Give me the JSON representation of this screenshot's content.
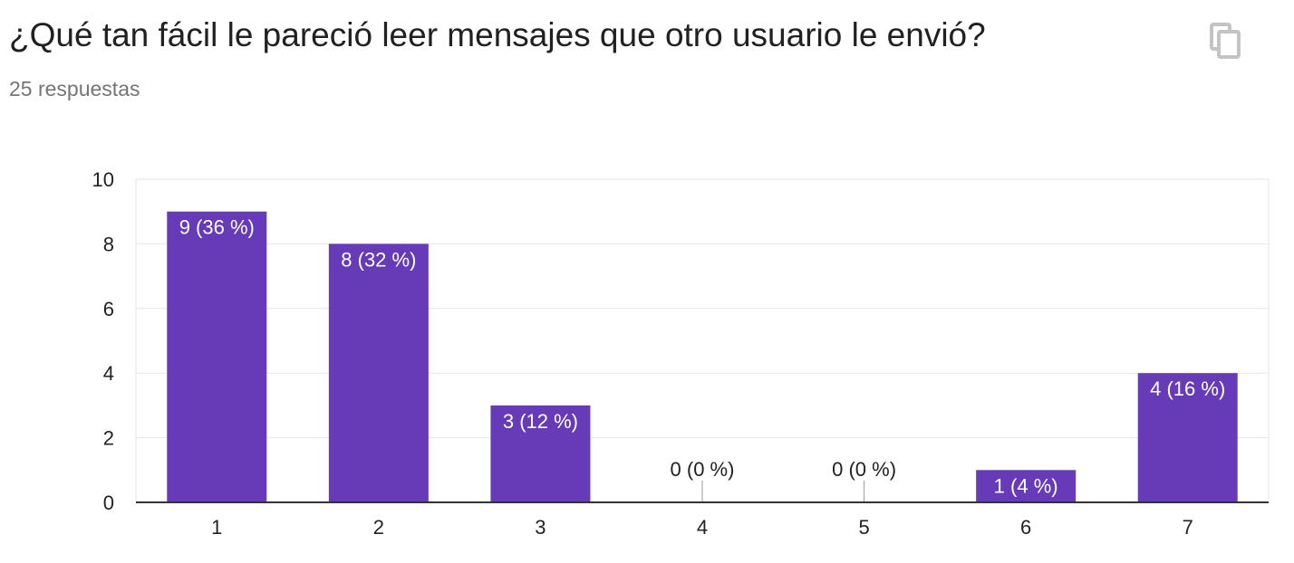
{
  "question": {
    "title": "¿Qué tan fácil le pareció leer mensajes que otro usuario le envió?",
    "responses": "25 respuestas"
  },
  "icons": {
    "copy": "copy-icon"
  },
  "colors": {
    "bar": "#673ab7",
    "grid": "#e6e6e6",
    "axis": "#333333",
    "label_inside": "#ffffff",
    "label_outside": "#222222"
  },
  "chart_data": {
    "type": "bar",
    "categories": [
      "1",
      "2",
      "3",
      "4",
      "5",
      "6",
      "7"
    ],
    "values": [
      9,
      8,
      3,
      0,
      0,
      1,
      4
    ],
    "labels": [
      "9 (36 %)",
      "8 (32 %)",
      "3 (12 %)",
      "0 (0 %)",
      "0 (0 %)",
      "1 (4 %)",
      "4 (16 %)"
    ],
    "yticks": [
      "0",
      "2",
      "4",
      "6",
      "8",
      "10"
    ],
    "ylim": [
      0,
      10
    ],
    "grid": true,
    "legend": "none",
    "title": "",
    "xlabel": "",
    "ylabel": ""
  }
}
